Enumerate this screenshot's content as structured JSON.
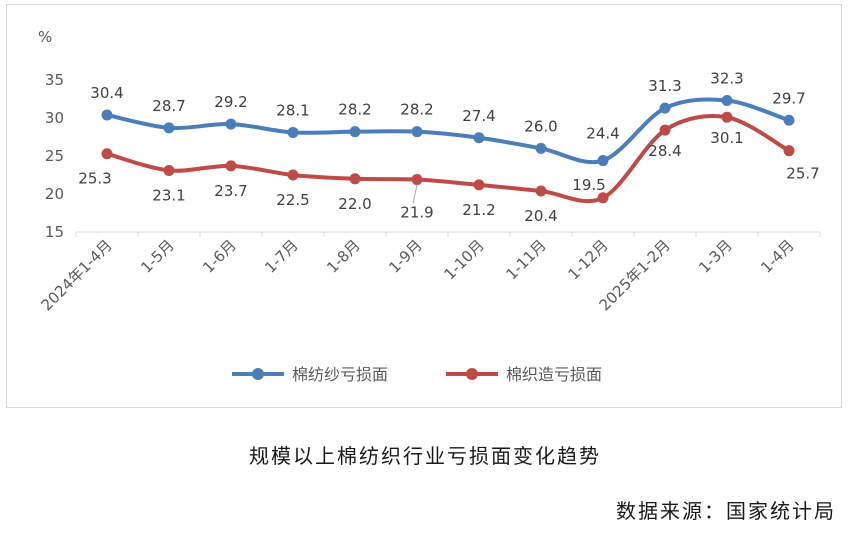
{
  "chart_data": {
    "type": "line",
    "ylabel": "%",
    "ylim": [
      15,
      35
    ],
    "yticks": [
      15,
      20,
      25,
      30,
      35
    ],
    "grid": false,
    "legend_position": "bottom",
    "categories": [
      "2024年1-4月",
      "1-5月",
      "1-6月",
      "1-7月",
      "1-8月",
      "1-9月",
      "1-10月",
      "1-11月",
      "1-12月",
      "2025年1-2月",
      "1-3月",
      "1-4月"
    ],
    "series": [
      {
        "name": "棉纺纱亏损面",
        "color": "#4a7ebb",
        "values": [
          30.4,
          28.7,
          29.2,
          28.1,
          28.2,
          28.2,
          27.4,
          26.0,
          24.4,
          31.3,
          32.3,
          29.7
        ],
        "labels": [
          "30.4",
          "28.7",
          "29.2",
          "28.1",
          "28.2",
          "28.2",
          "27.4",
          "26.0",
          "24.4",
          "31.3",
          "32.3",
          "29.7"
        ]
      },
      {
        "name": "棉织造亏损面",
        "color": "#be4b48",
        "values": [
          25.3,
          23.1,
          23.7,
          22.5,
          22.0,
          21.9,
          21.2,
          20.4,
          19.5,
          28.4,
          30.1,
          25.7
        ],
        "labels": [
          "25.3",
          "23.1",
          "23.7",
          "22.5",
          "22.0",
          "21.9",
          "21.2",
          "20.4",
          "19.5",
          "28.4",
          "30.1",
          "25.7"
        ]
      }
    ]
  },
  "caption": "规模以上棉纺织行业亏损面变化趋势",
  "source": "数据来源：国家统计局"
}
